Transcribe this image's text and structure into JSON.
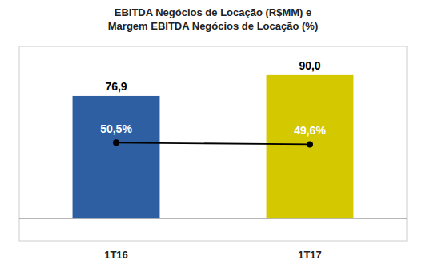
{
  "chart_data": {
    "type": "bar",
    "title": "EBITDA  Negócios de Locação (R$MM)  e\nMargem  EBITDA  Negócios de Locação (%)",
    "categories": [
      "1T16",
      "1T17"
    ],
    "series": [
      {
        "type": "bar",
        "colors": [
          "#2E5FA3",
          "#D4C800"
        ],
        "values": [
          76.9,
          90.0
        ],
        "value_labels": [
          "76,9",
          "90,0"
        ]
      },
      {
        "type": "line",
        "axis": "y2",
        "color": "#000000",
        "marker": "circle",
        "values": [
          50.5,
          49.6
        ],
        "value_labels": [
          "50,5%",
          "49,6%"
        ]
      }
    ],
    "ylim": [
      -14,
      108
    ],
    "y2lim": [
      0,
      100
    ],
    "data_labels": true,
    "tick_labels": "x"
  }
}
